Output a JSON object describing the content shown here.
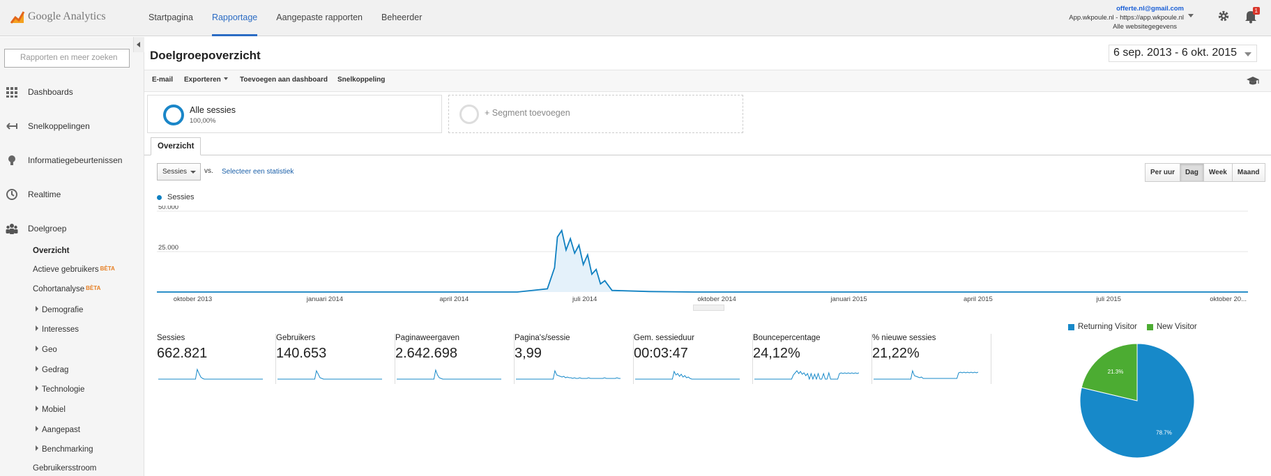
{
  "app": {
    "logo_text": "Google Analytics"
  },
  "topnav": [
    "Startpagina",
    "Rapportage",
    "Aangepaste rapporten",
    "Beheerder"
  ],
  "account": {
    "email": "offerte.nl@gmail.com",
    "property": "App.wkpoule.nl - https://app.wkpoule.nl",
    "view": "Alle websitegegevens"
  },
  "notifications": {
    "count": "1"
  },
  "sidebar": {
    "search_placeholder": "Rapporten en meer zoeken",
    "items": [
      "Dashboards",
      "Snelkoppelingen",
      "Informatiegebeurtenissen",
      "Realtime",
      "Doelgroep"
    ],
    "sub_items": {
      "overzicht": "Overzicht",
      "actieve": "Actieve gebruikers",
      "cohort": "Cohortanalyse",
      "beta": "BÈTA",
      "demografie": "Demografie",
      "interesses": "Interesses",
      "geo": "Geo",
      "gedrag": "Gedrag",
      "technologie": "Technologie",
      "mobiel": "Mobiel",
      "aangepast": "Aangepast",
      "benchmarking": "Benchmarking",
      "stroom": "Gebruikersstroom"
    }
  },
  "page": {
    "title": "Doelgroepoverzicht",
    "daterange": "6 sep. 2013 - 6 okt. 2015"
  },
  "toolbar": {
    "email": "E-mail",
    "export": "Exporteren",
    "dashboard": "Toevoegen aan dashboard",
    "shortcut": "Snelkoppeling"
  },
  "segments": {
    "all_name": "Alle sessies",
    "all_pct": "100,00%",
    "add": "+ Segment toevoegen"
  },
  "tabs": {
    "overview": "Overzicht"
  },
  "controls": {
    "metric": "Sessies",
    "vs": "vs.",
    "select_stat": "Selecteer een statistiek",
    "granularity": [
      "Per uur",
      "Dag",
      "Week",
      "Maand"
    ],
    "selected_granularity": "Dag"
  },
  "colors": {
    "accent": "#2b6cc4",
    "series": "#0f80c1",
    "returning": "#1789c9",
    "new": "#4cac32"
  },
  "chart_data": [
    {
      "type": "area",
      "series": [
        {
          "name": "Sessies",
          "values_note_free": true
        }
      ],
      "x": [
        "2013-09",
        "2013-10",
        "2013-11",
        "2013-12",
        "2014-01",
        "2014-02",
        "2014-03",
        "2014-04",
        "2014-05",
        "2014-06-05",
        "2014-06-10",
        "2014-06-12",
        "2014-06-15",
        "2014-06-18",
        "2014-06-21",
        "2014-06-24",
        "2014-06-27",
        "2014-06-30",
        "2014-07-03",
        "2014-07-06",
        "2014-07-09",
        "2014-07-12",
        "2014-07-15",
        "2014-07-20",
        "2014-08",
        "2014-09",
        "2014-10",
        "2015-01",
        "2015-04",
        "2015-07",
        "2015-10"
      ],
      "values": [
        0,
        0,
        0,
        0,
        0,
        0,
        0,
        0,
        0,
        2000,
        15000,
        34000,
        38000,
        26000,
        33000,
        24000,
        29000,
        17000,
        23000,
        11000,
        14000,
        5000,
        7000,
        1000,
        300,
        0,
        0,
        0,
        0,
        0,
        0
      ],
      "xticks": [
        "oktober 2013",
        "januari 2014",
        "april 2014",
        "juli 2014",
        "oktober 2014",
        "januari 2015",
        "april 2015",
        "juli 2015",
        "oktober 20..."
      ],
      "yticks": [
        "50.000",
        "25.000"
      ],
      "ylim": [
        0,
        50000
      ],
      "grid": true,
      "legend": "top-left"
    },
    {
      "type": "pie",
      "categories": [
        "Returning Visitor",
        "New Visitor"
      ],
      "values": [
        78.7,
        21.3
      ],
      "labels": [
        "78.7%",
        "21.3%"
      ],
      "legend": "top"
    }
  ],
  "kpis": [
    {
      "label": "Sessies",
      "value": "662.821",
      "spark": [
        0,
        0,
        0,
        0,
        0,
        0,
        0,
        0,
        0,
        0,
        0,
        0,
        0,
        0,
        0,
        0,
        0,
        0,
        0,
        0,
        0,
        0,
        14,
        8,
        3,
        1,
        0,
        0,
        0,
        0,
        0,
        0,
        0,
        0,
        0,
        0,
        0,
        0,
        0,
        0,
        0,
        0,
        0,
        0,
        0,
        0,
        0,
        0,
        0,
        0,
        0,
        0,
        0,
        0,
        0,
        0,
        0,
        0,
        0,
        0
      ]
    },
    {
      "label": "Gebruikers",
      "value": "140.653",
      "spark": [
        0,
        0,
        0,
        0,
        0,
        0,
        0,
        0,
        0,
        0,
        0,
        0,
        0,
        0,
        0,
        0,
        0,
        0,
        0,
        0,
        0,
        0,
        12,
        7,
        2,
        1,
        0,
        0,
        0,
        0,
        0,
        0,
        0,
        0,
        0,
        0,
        0,
        0,
        0,
        0,
        0,
        0,
        0,
        0,
        0,
        0,
        0,
        0,
        0,
        0,
        0,
        0,
        0,
        0,
        0,
        0,
        0,
        0,
        0,
        0
      ]
    },
    {
      "label": "Paginaweergaven",
      "value": "2.642.698",
      "spark": [
        0,
        0,
        0,
        0,
        0,
        0,
        0,
        0,
        0,
        0,
        0,
        0,
        0,
        0,
        0,
        0,
        0,
        0,
        0,
        0,
        0,
        0,
        13,
        6,
        2,
        1,
        0,
        0,
        0,
        0,
        0,
        0,
        0,
        0,
        0,
        0,
        0,
        0,
        0,
        0,
        0,
        0,
        0,
        0,
        0,
        0,
        0,
        0,
        0,
        0,
        0,
        0,
        0,
        0,
        0,
        0,
        0,
        0,
        0,
        0
      ]
    },
    {
      "label": "Pagina's/sessie",
      "value": "3,99",
      "spark": [
        0,
        0,
        0,
        0,
        0,
        0,
        0,
        0,
        0,
        0,
        0,
        0,
        0,
        0,
        0,
        0,
        0,
        0,
        0,
        0,
        0,
        0,
        12,
        6,
        5,
        4,
        3,
        4,
        2,
        3,
        2,
        2,
        1,
        2,
        1,
        1,
        2,
        1,
        1,
        1,
        1,
        2,
        1,
        1,
        1,
        1,
        1,
        1,
        1,
        1,
        2,
        1,
        1,
        1,
        1,
        1,
        1,
        2,
        1,
        1
      ]
    },
    {
      "label": "Gem. sessieduur",
      "value": "00:03:47",
      "spark": [
        0,
        0,
        0,
        0,
        0,
        0,
        0,
        0,
        0,
        0,
        0,
        0,
        0,
        0,
        0,
        0,
        0,
        0,
        0,
        0,
        0,
        0,
        11,
        6,
        8,
        4,
        7,
        3,
        5,
        2,
        3,
        1,
        0,
        0,
        0,
        0,
        0,
        0,
        0,
        0,
        0,
        0,
        0,
        0,
        0,
        0,
        0,
        0,
        0,
        0,
        0,
        0,
        0,
        0,
        0,
        0,
        0,
        0,
        0,
        0
      ]
    },
    {
      "label": "Bouncepercentage",
      "value": "24,12%",
      "spark": [
        0,
        0,
        0,
        0,
        0,
        0,
        0,
        0,
        0,
        0,
        0,
        0,
        0,
        0,
        0,
        0,
        0,
        0,
        0,
        0,
        0,
        0,
        6,
        9,
        12,
        8,
        11,
        7,
        9,
        5,
        8,
        0,
        8,
        0,
        7,
        0,
        8,
        0,
        0,
        8,
        0,
        0,
        9,
        0,
        0,
        0,
        0,
        0,
        8,
        9,
        8,
        9,
        8,
        9,
        8,
        9,
        8,
        9,
        8,
        9
      ]
    },
    {
      "label": "% nieuwe sessies",
      "value": "21,22%",
      "spark": [
        0,
        0,
        0,
        0,
        0,
        0,
        0,
        0,
        0,
        0,
        0,
        0,
        0,
        0,
        0,
        0,
        0,
        0,
        0,
        0,
        0,
        0,
        12,
        5,
        4,
        3,
        2,
        3,
        1,
        1,
        1,
        1,
        1,
        1,
        1,
        1,
        1,
        1,
        1,
        1,
        1,
        1,
        1,
        1,
        1,
        1,
        1,
        1,
        9,
        10,
        9,
        10,
        9,
        10,
        9,
        10,
        9,
        10,
        9,
        10
      ]
    }
  ]
}
